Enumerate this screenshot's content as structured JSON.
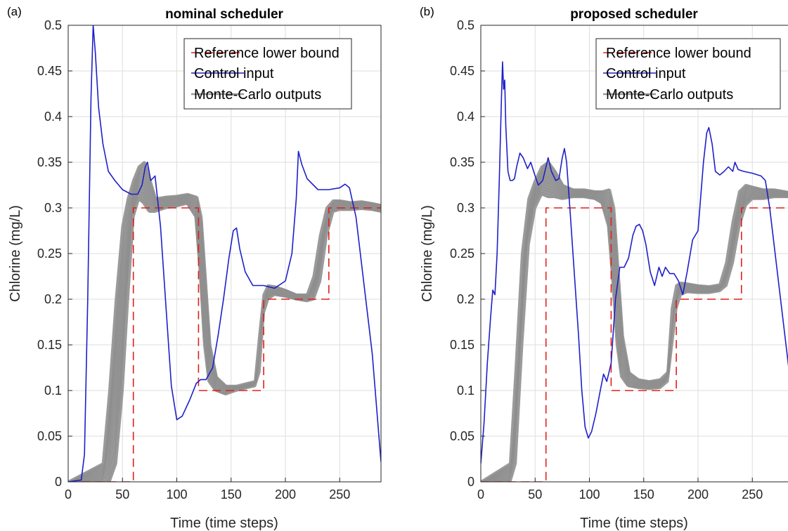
{
  "figure": {
    "legend_entries": [
      "Reference lower bound",
      "Control input",
      "Monte-Carlo outputs"
    ]
  },
  "colors": {
    "reference": "#e0201b",
    "control": "#1f1fc8",
    "montecarlo": "#9a9a9a",
    "grid": "#dedede",
    "axis": "#262626"
  },
  "chart_data": [
    {
      "type": "line",
      "panel_label": "(a)",
      "title": "nominal scheduler",
      "xlabel": "Time (time steps)",
      "ylabel": "Chlorine (mg/L)",
      "xlim": [
        0,
        288
      ],
      "ylim": [
        0,
        0.5
      ],
      "xticks": [
        0,
        50,
        100,
        150,
        200,
        250
      ],
      "yticks": [
        0,
        0.05,
        0.1,
        0.15,
        0.2,
        0.25,
        0.3,
        0.35,
        0.4,
        0.45,
        0.5
      ],
      "grid": true,
      "legend_position": "top-right",
      "series": [
        {
          "name": "Reference lower bound",
          "style": "dashed",
          "x": [
            0,
            60,
            60,
            120,
            120,
            180,
            180,
            240,
            240,
            288
          ],
          "y": [
            0,
            0,
            0.3,
            0.3,
            0.1,
            0.1,
            0.2,
            0.2,
            0.3,
            0.3
          ]
        },
        {
          "name": "Control input",
          "style": "solid",
          "x": [
            0,
            12,
            15,
            18,
            21,
            23,
            25,
            28,
            32,
            37,
            43,
            50,
            58,
            64,
            68,
            71,
            73,
            76,
            80,
            85,
            95,
            100,
            105,
            112,
            118,
            122,
            127,
            133,
            138,
            143,
            148,
            152,
            155,
            158,
            163,
            170,
            180,
            190,
            200,
            206,
            210,
            212,
            215,
            220,
            230,
            240,
            250,
            255,
            259,
            265,
            272,
            280,
            288
          ],
          "y": [
            0,
            0.002,
            0.03,
            0.2,
            0.42,
            0.5,
            0.47,
            0.41,
            0.37,
            0.34,
            0.33,
            0.32,
            0.315,
            0.315,
            0.325,
            0.345,
            0.35,
            0.33,
            0.335,
            0.28,
            0.105,
            0.068,
            0.072,
            0.09,
            0.108,
            0.112,
            0.112,
            0.125,
            0.16,
            0.2,
            0.245,
            0.275,
            0.278,
            0.255,
            0.23,
            0.215,
            0.215,
            0.212,
            0.22,
            0.25,
            0.31,
            0.362,
            0.348,
            0.332,
            0.32,
            0.32,
            0.322,
            0.326,
            0.322,
            0.29,
            0.22,
            0.14,
            0.022
          ]
        },
        {
          "name": "Monte-Carlo outputs",
          "style": "solid",
          "x": [
            0,
            32,
            38,
            44,
            50,
            55,
            60,
            65,
            70,
            75,
            80,
            90,
            100,
            110,
            118,
            122,
            126,
            130,
            136,
            145,
            155,
            165,
            172,
            176,
            180,
            184,
            190,
            200,
            210,
            220,
            226,
            232,
            238,
            244,
            250,
            260,
            270,
            280,
            288
          ],
          "y_low": [
            0,
            0,
            0,
            0.02,
            0.1,
            0.2,
            0.29,
            0.31,
            0.305,
            0.296,
            0.296,
            0.3,
            0.302,
            0.305,
            0.29,
            0.23,
            0.15,
            0.11,
            0.1,
            0.096,
            0.1,
            0.103,
            0.105,
            0.12,
            0.185,
            0.2,
            0.205,
            0.203,
            0.2,
            0.198,
            0.2,
            0.22,
            0.27,
            0.296,
            0.298,
            0.298,
            0.299,
            0.298,
            0.296
          ],
          "y_high": [
            0,
            0.02,
            0.1,
            0.2,
            0.28,
            0.31,
            0.33,
            0.345,
            0.35,
            0.33,
            0.31,
            0.312,
            0.313,
            0.315,
            0.312,
            0.29,
            0.22,
            0.15,
            0.115,
            0.105,
            0.105,
            0.108,
            0.11,
            0.16,
            0.205,
            0.215,
            0.214,
            0.21,
            0.205,
            0.205,
            0.225,
            0.27,
            0.3,
            0.308,
            0.308,
            0.306,
            0.307,
            0.305,
            0.303
          ]
        }
      ]
    },
    {
      "type": "line",
      "panel_label": "(b)",
      "title": "proposed scheduler",
      "xlabel": "Time (time steps)",
      "ylabel": "Chlorine (mg/L)",
      "xlim": [
        0,
        288
      ],
      "ylim": [
        0,
        0.5
      ],
      "xticks": [
        0,
        50,
        100,
        150,
        200,
        250
      ],
      "yticks": [
        0,
        0.05,
        0.1,
        0.15,
        0.2,
        0.25,
        0.3,
        0.35,
        0.4,
        0.45,
        0.5
      ],
      "grid": true,
      "legend_position": "top-right",
      "series": [
        {
          "name": "Reference lower bound",
          "style": "dashed",
          "x": [
            0,
            60,
            60,
            120,
            120,
            180,
            180,
            240,
            240,
            288
          ],
          "y": [
            0,
            0,
            0.3,
            0.3,
            0.1,
            0.1,
            0.2,
            0.2,
            0.3,
            0.3
          ]
        },
        {
          "name": "Control input",
          "style": "solid",
          "x": [
            0,
            3,
            6,
            9,
            11,
            13,
            15,
            17,
            19,
            20,
            21,
            22,
            23,
            25,
            27,
            29,
            31,
            33,
            36,
            39,
            43,
            46,
            50,
            53,
            57,
            60,
            62,
            65,
            69,
            72,
            75,
            77,
            79,
            82,
            86,
            90,
            93,
            96,
            99,
            102,
            106,
            110,
            113,
            116,
            120,
            124,
            128,
            132,
            136,
            140,
            143,
            146,
            149,
            152,
            156,
            160,
            164,
            167,
            170,
            174,
            178,
            182,
            186,
            190,
            195,
            200,
            205,
            208,
            210,
            213,
            216,
            220,
            224,
            228,
            232,
            234,
            237,
            242,
            250,
            258,
            262,
            266,
            270,
            276,
            282,
            288
          ],
          "y": [
            0.02,
            0.065,
            0.13,
            0.18,
            0.21,
            0.205,
            0.25,
            0.33,
            0.42,
            0.46,
            0.43,
            0.44,
            0.39,
            0.34,
            0.33,
            0.33,
            0.332,
            0.345,
            0.36,
            0.355,
            0.343,
            0.35,
            0.335,
            0.325,
            0.33,
            0.345,
            0.355,
            0.34,
            0.33,
            0.332,
            0.355,
            0.365,
            0.35,
            0.3,
            0.23,
            0.16,
            0.1,
            0.06,
            0.048,
            0.055,
            0.075,
            0.1,
            0.118,
            0.11,
            0.13,
            0.2,
            0.235,
            0.235,
            0.245,
            0.27,
            0.28,
            0.282,
            0.275,
            0.26,
            0.23,
            0.215,
            0.235,
            0.225,
            0.235,
            0.228,
            0.228,
            0.22,
            0.205,
            0.23,
            0.265,
            0.275,
            0.35,
            0.382,
            0.388,
            0.37,
            0.34,
            0.336,
            0.34,
            0.345,
            0.34,
            0.35,
            0.342,
            0.34,
            0.338,
            0.335,
            0.33,
            0.3,
            0.26,
            0.2,
            0.14,
            0.08
          ]
        },
        {
          "name": "Monte-Carlo outputs",
          "style": "solid",
          "x": [
            0,
            27,
            32,
            38,
            44,
            50,
            56,
            62,
            68,
            75,
            85,
            95,
            105,
            112,
            118,
            122,
            126,
            130,
            136,
            145,
            155,
            165,
            172,
            176,
            180,
            184,
            190,
            200,
            210,
            220,
            226,
            232,
            238,
            244,
            250,
            260,
            270,
            280,
            288
          ],
          "y_low": [
            0,
            0,
            0.02,
            0.15,
            0.26,
            0.3,
            0.315,
            0.312,
            0.312,
            0.31,
            0.312,
            0.312,
            0.31,
            0.305,
            0.28,
            0.22,
            0.15,
            0.115,
            0.105,
            0.103,
            0.102,
            0.103,
            0.11,
            0.15,
            0.19,
            0.205,
            0.208,
            0.207,
            0.207,
            0.209,
            0.215,
            0.24,
            0.28,
            0.303,
            0.31,
            0.31,
            0.312,
            0.312,
            0.312
          ],
          "y_high": [
            0,
            0.02,
            0.12,
            0.25,
            0.31,
            0.33,
            0.345,
            0.35,
            0.34,
            0.325,
            0.32,
            0.32,
            0.318,
            0.318,
            0.32,
            0.3,
            0.23,
            0.16,
            0.12,
            0.112,
            0.11,
            0.112,
            0.12,
            0.19,
            0.215,
            0.218,
            0.217,
            0.215,
            0.214,
            0.216,
            0.24,
            0.285,
            0.318,
            0.325,
            0.323,
            0.32,
            0.32,
            0.318,
            0.316
          ]
        }
      ]
    }
  ]
}
